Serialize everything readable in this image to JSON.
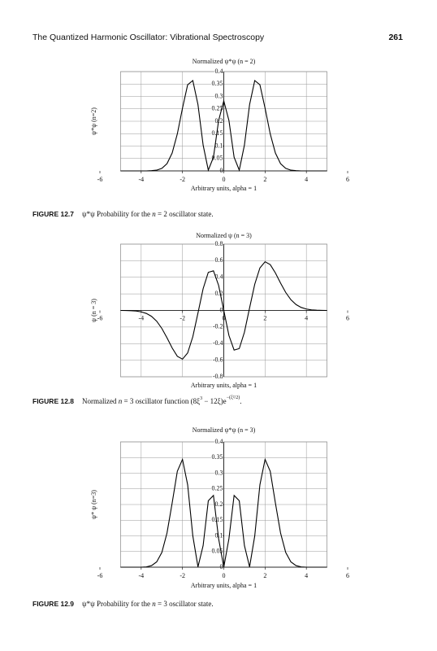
{
  "header": {
    "title": "The Quantized Harmonic Oscillator: Vibrational Spectroscopy",
    "page": "261"
  },
  "figures": [
    {
      "label": "FIGURE 12.7",
      "caption": [
        "ψ*ψ Probability for the ",
        "n",
        " = 2 oscillator state."
      ]
    },
    {
      "label": "FIGURE 12.8",
      "caption": [
        "Normalized ",
        "n",
        " = 3 oscillator function (8ξ",
        "3",
        " − 12ξ)e",
        "−(ξ²/2)",
        "."
      ]
    },
    {
      "label": "FIGURE 12.9",
      "caption": [
        "ψ*ψ Probability for the ",
        "n",
        " = 3 oscillator state."
      ]
    }
  ],
  "chart_data": [
    {
      "type": "line",
      "title": "Normalized ψ*ψ (n = 2)",
      "x_label": "Arbitrary units, alpha = 1",
      "y_label": "ψ*ψ (n=2)",
      "x": [
        -5,
        -4.75,
        -4.5,
        -4.25,
        -4,
        -3.75,
        -3.5,
        -3.25,
        -3,
        -2.75,
        -2.5,
        -2.25,
        -2,
        -1.75,
        -1.5,
        -1.25,
        -1,
        -0.75,
        -0.5,
        -0.25,
        0,
        0.25,
        0.5,
        0.75,
        1,
        1.25,
        1.5,
        1.75,
        2,
        2.25,
        2.5,
        2.75,
        3,
        3.25,
        3.5,
        3.75,
        4,
        4.25,
        4.5,
        4.75,
        5
      ],
      "values": [
        0,
        0,
        0,
        0,
        0,
        0,
        0.001,
        0.003,
        0.01,
        0.029,
        0.072,
        0.149,
        0.253,
        0.347,
        0.364,
        0.267,
        0.104,
        0.003,
        0.055,
        0.203,
        0.282,
        0.203,
        0.055,
        0.003,
        0.104,
        0.267,
        0.364,
        0.347,
        0.253,
        0.149,
        0.072,
        0.029,
        0.01,
        0.003,
        0.001,
        0,
        0,
        0,
        0,
        0,
        0
      ],
      "color": "#000000",
      "xlim": [
        -6,
        6
      ],
      "xticks": [
        -6,
        -4,
        -2,
        0,
        2,
        4,
        6
      ],
      "ylim": [
        0,
        0.4
      ],
      "yticks": [
        0,
        0.05,
        0.1,
        0.15,
        0.2,
        0.25,
        0.3,
        0.35,
        0.4
      ],
      "grid": true
    },
    {
      "type": "line",
      "title": "Normalized ψ (n = 3)",
      "x_label": "Arbitrary units, alpha = 1",
      "y_label": "ψ (n = 3)",
      "x": [
        -5,
        -4.75,
        -4.5,
        -4.25,
        -4,
        -3.75,
        -3.5,
        -3.25,
        -3,
        -2.75,
        -2.5,
        -2.25,
        -2,
        -1.75,
        -1.5,
        -1.25,
        -1,
        -0.75,
        -0.5,
        -0.25,
        0,
        0.25,
        0.5,
        0.75,
        1,
        1.25,
        1.5,
        1.75,
        2,
        2.25,
        2.5,
        2.75,
        3,
        3.25,
        3.5,
        3.75,
        4,
        4.25,
        4.5,
        4.75,
        5
      ],
      "values": [
        0,
        -0.001,
        -0.003,
        -0.007,
        -0.017,
        -0.036,
        -0.071,
        -0.13,
        -0.217,
        -0.33,
        -0.453,
        -0.553,
        -0.587,
        -0.513,
        -0.317,
        -0.031,
        0.263,
        0.46,
        0.478,
        0.302,
        0,
        -0.302,
        -0.478,
        -0.46,
        -0.263,
        0.031,
        0.317,
        0.513,
        0.587,
        0.553,
        0.453,
        0.33,
        0.217,
        0.13,
        0.071,
        0.036,
        0.017,
        0.007,
        0.003,
        0.001,
        0
      ],
      "color": "#000000",
      "xlim": [
        -6,
        6
      ],
      "xticks": [
        -6,
        -4,
        -2,
        0,
        2,
        4,
        6
      ],
      "ylim": [
        -0.8,
        0.8
      ],
      "yticks": [
        -0.8,
        -0.6,
        -0.4,
        -0.2,
        0,
        0.2,
        0.4,
        0.6,
        0.8
      ],
      "grid": true
    },
    {
      "type": "line",
      "title": "Normalized ψ*ψ (n = 3)",
      "x_label": "Arbitrary units, alpha = 1",
      "y_label": "ψ* ψ (n=3)",
      "x": [
        -5,
        -4.75,
        -4.5,
        -4.25,
        -4,
        -3.75,
        -3.5,
        -3.25,
        -3,
        -2.75,
        -2.5,
        -2.25,
        -2,
        -1.75,
        -1.5,
        -1.25,
        -1,
        -0.75,
        -0.5,
        -0.25,
        0,
        0.25,
        0.5,
        0.75,
        1,
        1.25,
        1.5,
        1.75,
        2,
        2.25,
        2.5,
        2.75,
        3,
        3.25,
        3.5,
        3.75,
        4,
        4.25,
        4.5,
        4.75,
        5
      ],
      "values": [
        0,
        0,
        0,
        0,
        0,
        0.001,
        0.005,
        0.017,
        0.047,
        0.109,
        0.205,
        0.306,
        0.344,
        0.263,
        0.1,
        0.001,
        0.069,
        0.212,
        0.229,
        0.091,
        0,
        0.091,
        0.229,
        0.212,
        0.069,
        0.001,
        0.1,
        0.263,
        0.344,
        0.306,
        0.205,
        0.109,
        0.047,
        0.017,
        0.005,
        0.001,
        0,
        0,
        0,
        0,
        0
      ],
      "color": "#000000",
      "xlim": [
        -6,
        6
      ],
      "xticks": [
        -6,
        -4,
        -2,
        0,
        2,
        4,
        6
      ],
      "ylim": [
        0,
        0.4
      ],
      "yticks": [
        0,
        0.05,
        0.1,
        0.15,
        0.2,
        0.25,
        0.3,
        0.35,
        0.4
      ],
      "grid": true
    }
  ]
}
